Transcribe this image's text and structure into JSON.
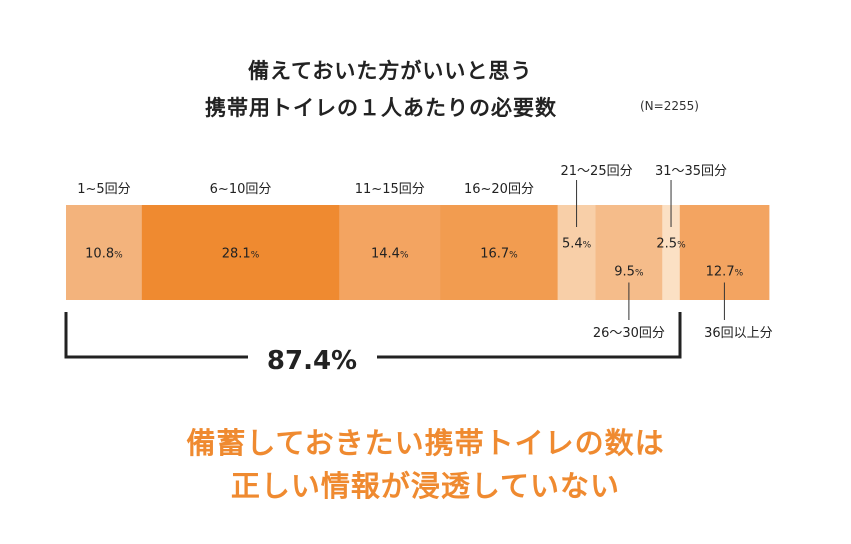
{
  "title_line1": "備えておいた方がいいと思う",
  "title_line2": "携帯用トイレの１人あたりの必要数",
  "n_label": "(N=2255)",
  "bracket_total": "87.4%",
  "headline_line1": "備蓄しておきたい携帯トイレの数は",
  "headline_line2": "正しい情報が浸透していない",
  "chart_data": {
    "type": "bar",
    "orientation": "horizontal-stacked-100",
    "categories": [
      "1~5回分",
      "6~10回分",
      "11~15回分",
      "16~20回分",
      "21〜25回分",
      "26〜30回分",
      "31〜35回分",
      "36回以上分"
    ],
    "values": [
      10.8,
      28.1,
      14.4,
      16.7,
      5.4,
      9.5,
      2.5,
      12.7
    ],
    "value_labels": [
      "10.8",
      "28.1",
      "14.4",
      "16.7",
      "5.4",
      "9.5",
      "2.5",
      "12.7"
    ],
    "unit": "%",
    "colors": [
      "#f3b37c",
      "#ef8a30",
      "#f3a461",
      "#f29c50",
      "#f8cfa8",
      "#f5bc8a",
      "#fbe0c4",
      "#f3a461"
    ]
  }
}
